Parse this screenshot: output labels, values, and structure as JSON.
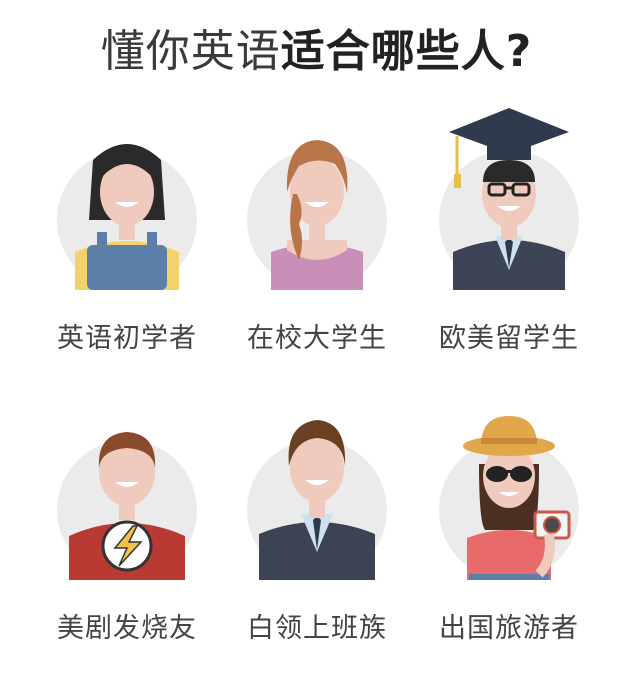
{
  "title": {
    "part1": "懂你英语",
    "part2": "适合哪些人?"
  },
  "personas": [
    {
      "label": "英语初学者",
      "icon": "girl-overalls-icon"
    },
    {
      "label": "在校大学生",
      "icon": "female-student-icon"
    },
    {
      "label": "欧美留学生",
      "icon": "graduate-cap-icon"
    },
    {
      "label": "美剧发烧友",
      "icon": "tv-fan-flash-shirt-icon"
    },
    {
      "label": "白领上班族",
      "icon": "office-worker-suit-icon"
    },
    {
      "label": "出国旅游者",
      "icon": "tourist-camera-icon"
    }
  ],
  "colors": {
    "circle": "#ebebeb",
    "skin": "#f0cabd",
    "text": "#444444"
  }
}
